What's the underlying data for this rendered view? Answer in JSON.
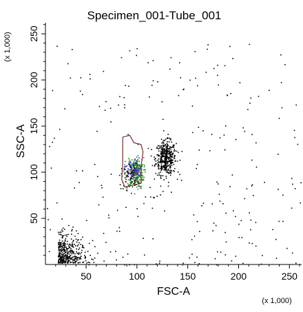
{
  "chart_data": {
    "type": "scatter",
    "title": "Specimen_001-Tube_001",
    "xlabel": "FSC-A",
    "ylabel": "SSC-A",
    "x_scale_note": "(x 1,000)",
    "y_scale_note": "(x 1,000)",
    "xlim": [
      10,
      262
    ],
    "ylim": [
      0,
      262
    ],
    "x_ticks": [
      50,
      100,
      150,
      200,
      250
    ],
    "y_ticks": [
      50,
      100,
      150,
      200,
      250
    ],
    "grid": false,
    "colors": {
      "events": "#000000",
      "gated_green": "#1a8a1a",
      "gated_blue": "#2a2ad0",
      "gated_purple": "#8a2a8a",
      "gate_outline": "#7a2b2b"
    },
    "gate": {
      "name": "",
      "polygon": [
        [
          86,
          138
        ],
        [
          93,
          140
        ],
        [
          97,
          132
        ],
        [
          104,
          130
        ],
        [
          106,
          122
        ],
        [
          104,
          106
        ],
        [
          104,
          88
        ],
        [
          88,
          84
        ],
        [
          85,
          92
        ],
        [
          86,
          110
        ],
        [
          86,
          138
        ]
      ]
    },
    "populations": [
      {
        "label": "",
        "center": [
          128,
          116
        ],
        "spread": [
          5,
          9
        ],
        "count": 420,
        "color": "#000000"
      },
      {
        "label": "",
        "center": [
          98,
          100
        ],
        "spread": [
          4,
          8
        ],
        "count": 260,
        "color": "#1a8a1a"
      },
      {
        "label": "",
        "center": [
          96,
          104
        ],
        "spread": [
          4,
          6
        ],
        "count": 60,
        "color": "#2a2ad0"
      },
      {
        "label": "",
        "center": [
          97,
          98
        ],
        "spread": [
          4,
          6
        ],
        "count": 40,
        "color": "#8a2a8a"
      },
      {
        "label": "",
        "center": [
          92,
          96
        ],
        "spread": [
          4,
          7
        ],
        "count": 50,
        "color": "#000000"
      },
      {
        "label": "",
        "center": [
          30,
          20
        ],
        "spread": [
          12,
          14
        ],
        "count": 360,
        "color": "#000000"
      }
    ],
    "background_events": 260
  }
}
